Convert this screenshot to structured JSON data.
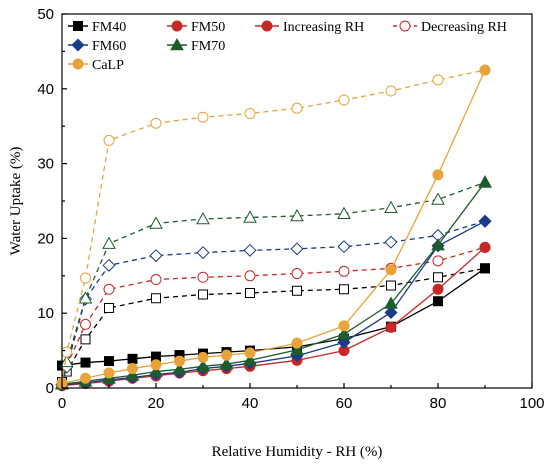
{
  "chart_data": {
    "type": "line",
    "title": "",
    "xlabel": "Relative Humidity - RH (%)",
    "ylabel": "Water Uptake (%)",
    "xlim": [
      0,
      100
    ],
    "ylim": [
      0,
      50
    ],
    "x_ticks": [
      0,
      20,
      40,
      60,
      80,
      100
    ],
    "y_ticks": [
      0,
      10,
      20,
      30,
      40,
      50
    ],
    "grid": false,
    "legend_position": "top",
    "legend": {
      "series_entries": [
        "FM40",
        "FM50",
        "FM60",
        "FM70",
        "CaLP"
      ],
      "style_entries": [
        {
          "label": "Increasing RH",
          "style": "filled-marker-solid-line"
        },
        {
          "label": "Decreasing RH",
          "style": "hollow-marker-dashed-line"
        }
      ]
    },
    "series": [
      {
        "name": "FM40",
        "color": "#000000",
        "marker": "square",
        "increasing": {
          "x": [
            0,
            5,
            10,
            15,
            20,
            25,
            30,
            35,
            40,
            50,
            60,
            70,
            80,
            90
          ],
          "y": [
            3.0,
            3.4,
            3.6,
            3.9,
            4.2,
            4.4,
            4.6,
            4.8,
            5.0,
            5.5,
            6.6,
            8.2,
            11.6,
            16.0
          ]
        },
        "decreasing": {
          "x": [
            0,
            1,
            5,
            10,
            20,
            30,
            40,
            50,
            60,
            70,
            80,
            90
          ],
          "y": [
            0.8,
            2.2,
            6.5,
            10.7,
            12.0,
            12.5,
            12.7,
            13.0,
            13.2,
            13.7,
            14.8,
            16.0
          ]
        }
      },
      {
        "name": "FM50",
        "color": "#c62828",
        "marker": "circle",
        "increasing": {
          "x": [
            0,
            5,
            10,
            15,
            20,
            25,
            30,
            35,
            40,
            50,
            60,
            70,
            80,
            90
          ],
          "y": [
            0.3,
            0.6,
            0.9,
            1.3,
            1.6,
            2.0,
            2.3,
            2.6,
            2.9,
            3.7,
            5.0,
            8.1,
            13.2,
            18.8
          ]
        },
        "decreasing": {
          "x": [
            0,
            1,
            5,
            10,
            20,
            30,
            40,
            50,
            60,
            70,
            80,
            90
          ],
          "y": [
            0.6,
            3.0,
            8.5,
            13.2,
            14.5,
            14.8,
            15.0,
            15.3,
            15.6,
            16.0,
            17.0,
            18.8
          ]
        }
      },
      {
        "name": "FM60",
        "color": "#1a3a8a",
        "marker": "diamond",
        "increasing": {
          "x": [
            0,
            5,
            10,
            15,
            20,
            25,
            30,
            35,
            40,
            50,
            60,
            70,
            80,
            90
          ],
          "y": [
            0.4,
            0.7,
            1.1,
            1.4,
            1.8,
            2.1,
            2.6,
            2.9,
            3.3,
            4.3,
            6.1,
            10.1,
            19.0,
            22.3
          ]
        },
        "decreasing": {
          "x": [
            0,
            1,
            5,
            10,
            20,
            30,
            40,
            50,
            60,
            70,
            80,
            90
          ],
          "y": [
            0.5,
            2.8,
            11.9,
            16.4,
            17.7,
            18.1,
            18.4,
            18.6,
            18.9,
            19.5,
            20.4,
            22.3
          ]
        }
      },
      {
        "name": "FM70",
        "color": "#1e5c2e",
        "marker": "triangle",
        "increasing": {
          "x": [
            0,
            5,
            10,
            15,
            20,
            25,
            30,
            35,
            40,
            50,
            60,
            70,
            80,
            90
          ],
          "y": [
            0.5,
            0.9,
            1.3,
            1.7,
            2.2,
            2.5,
            2.9,
            3.2,
            3.7,
            5.1,
            7.2,
            11.3,
            19.1,
            27.5
          ]
        },
        "decreasing": {
          "x": [
            0,
            1,
            5,
            10,
            20,
            30,
            40,
            50,
            60,
            70,
            80,
            90
          ],
          "y": [
            0.6,
            3.5,
            12.0,
            19.3,
            22.0,
            22.6,
            22.8,
            23.0,
            23.3,
            24.1,
            25.2,
            27.5
          ]
        }
      },
      {
        "name": "CaLP",
        "color": "#e8a33a",
        "marker": "circle",
        "increasing": {
          "x": [
            0,
            5,
            10,
            15,
            20,
            25,
            30,
            35,
            40,
            50,
            60,
            70,
            80,
            90
          ],
          "y": [
            0.6,
            1.3,
            2.0,
            2.6,
            3.1,
            3.6,
            4.1,
            4.4,
            4.7,
            6.0,
            8.3,
            15.8,
            28.5,
            42.5
          ]
        },
        "decreasing": {
          "x": [
            0,
            1,
            5,
            10,
            20,
            30,
            40,
            50,
            60,
            70,
            80,
            90
          ],
          "y": [
            0.7,
            4.8,
            14.7,
            33.1,
            35.4,
            36.2,
            36.7,
            37.4,
            38.5,
            39.7,
            41.2,
            42.5
          ]
        }
      }
    ]
  }
}
